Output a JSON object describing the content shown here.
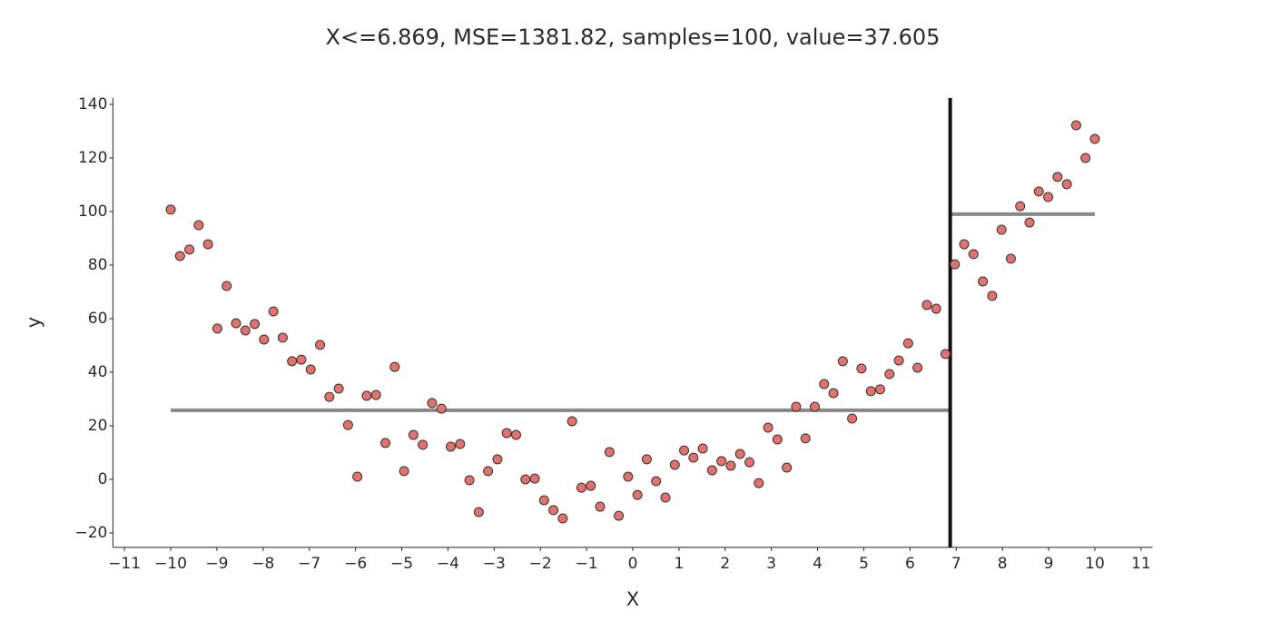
{
  "chart_data": {
    "type": "scatter",
    "title": "X<=6.869, MSE=1381.82, samples=100, value=37.605",
    "x_label": "X",
    "y_label": "y",
    "xlim": [
      -11.25,
      11.25
    ],
    "ylim": [
      -25.4,
      142.4
    ],
    "xticks": [
      {
        "value": -11,
        "label": "−11"
      },
      {
        "value": -10,
        "label": "−10"
      },
      {
        "value": -9,
        "label": "−9"
      },
      {
        "value": -8,
        "label": "−8"
      },
      {
        "value": -7,
        "label": "−7"
      },
      {
        "value": -6,
        "label": "−6"
      },
      {
        "value": -5,
        "label": "−5"
      },
      {
        "value": -4,
        "label": "−4"
      },
      {
        "value": -3,
        "label": "−3"
      },
      {
        "value": -2,
        "label": "−2"
      },
      {
        "value": -1,
        "label": "−1"
      },
      0,
      1,
      2,
      3,
      4,
      5,
      6,
      7,
      8,
      9,
      10,
      11
    ],
    "yticks": [
      {
        "value": -20,
        "label": "−20"
      },
      0,
      20,
      40,
      60,
      80,
      100,
      120,
      140
    ],
    "series": [
      {
        "color": "#e4716c",
        "x": [
          -10,
          -9.798,
          -9.596,
          -9.394,
          -9.192,
          -8.99,
          -8.788,
          -8.586,
          -8.384,
          -8.182,
          -7.98,
          -7.778,
          -7.576,
          -7.374,
          -7.172,
          -6.97,
          -6.768,
          -6.566,
          -6.364,
          -6.162,
          -5.96,
          -5.758,
          -5.556,
          -5.354,
          -5.152,
          -4.949,
          -4.747,
          -4.545,
          -4.343,
          -4.141,
          -3.939,
          -3.737,
          -3.535,
          -3.333,
          -3.131,
          -2.929,
          -2.727,
          -2.525,
          -2.323,
          -2.121,
          -1.919,
          -1.717,
          -1.515,
          -1.313,
          -1.111,
          -0.909,
          -0.707,
          -0.505,
          -0.303,
          -0.101,
          0.101,
          0.303,
          0.505,
          0.707,
          0.909,
          1.111,
          1.313,
          1.515,
          1.717,
          1.919,
          2.121,
          2.323,
          2.525,
          2.727,
          2.929,
          3.131,
          3.333,
          3.535,
          3.737,
          3.939,
          4.141,
          4.343,
          4.545,
          4.747,
          4.949,
          5.152,
          5.354,
          5.556,
          5.758,
          5.96,
          6.162,
          6.364,
          6.566,
          6.768,
          6.97,
          7.172,
          7.374,
          7.576,
          7.778,
          7.98,
          8.182,
          8.384,
          8.586,
          8.788,
          8.99,
          9.192,
          9.394,
          9.596,
          9.798,
          10
        ],
        "values": [
          100.7,
          83.4,
          85.8,
          94.9,
          87.8,
          56.3,
          72.2,
          58.3,
          55.6,
          58.0,
          52.2,
          62.7,
          52.9,
          44.1,
          44.7,
          41.0,
          50.2,
          30.8,
          33.9,
          20.3,
          1.0,
          31.2,
          31.5,
          13.6,
          42.0,
          3.1,
          16.6,
          12.9,
          28.5,
          26.4,
          12.2,
          13.2,
          -0.3,
          -12.2,
          3.1,
          7.5,
          17.3,
          16.6,
          0,
          0.3,
          -7.8,
          -11.5,
          -14.6,
          21.7,
          -3.1,
          -2.4,
          -10.2,
          10.2,
          -13.6,
          1.0,
          -5.8,
          7.5,
          -0.7,
          -6.8,
          5.4,
          10.8,
          8.1,
          11.5,
          3.4,
          6.8,
          5.1,
          9.5,
          6.4,
          -1.4,
          19.3,
          14.9,
          4.4,
          27.1,
          15.3,
          27.1,
          35.6,
          32.2,
          44.1,
          22.7,
          41.4,
          32.9,
          33.6,
          39.3,
          44.4,
          50.8,
          41.7,
          65.1,
          63.7,
          46.8,
          80.3,
          87.8,
          84.1,
          73.9,
          68.5,
          93.2,
          82.4,
          102.0,
          95.9,
          107.5,
          105.4,
          112.9,
          110.2,
          132.2,
          120.0,
          127.1
        ]
      }
    ],
    "lines": [
      {
        "color": "#888888",
        "x": [
          -10,
          6.869
        ],
        "values": [
          25.8,
          25.8
        ]
      },
      {
        "color": "#888888",
        "x": [
          6.869,
          10
        ],
        "values": [
          99.0,
          99.0
        ]
      }
    ],
    "split": 6.869,
    "split_color": "#111111"
  }
}
